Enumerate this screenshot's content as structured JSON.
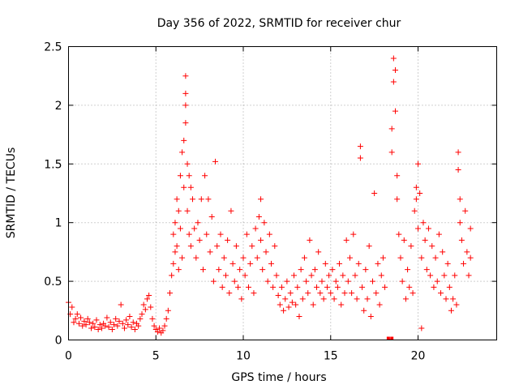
{
  "chart_data": {
    "type": "scatter",
    "title": "Day 356 of 2022, SRMTID for receiver chur",
    "xlabel": "GPS time / hours",
    "ylabel": "SRMTID / TECUs",
    "xlim": [
      0,
      24.5
    ],
    "ylim": [
      0,
      2.5
    ],
    "xticks": [
      0,
      5,
      10,
      15,
      20
    ],
    "xtick_labels": [
      "0",
      "5",
      "10",
      "15",
      "20"
    ],
    "yticks": [
      0,
      0.5,
      1,
      1.5,
      2,
      2.5
    ],
    "ytick_labels": [
      "0",
      "0.5",
      "1",
      "1.5",
      "2",
      "2.5"
    ],
    "grid": true,
    "marker": "+",
    "color": "#ff0000",
    "series": [
      {
        "name": "SRMTID",
        "points": [
          [
            0.0,
            0.32
          ],
          [
            0.1,
            0.22
          ],
          [
            0.2,
            0.28
          ],
          [
            0.3,
            0.15
          ],
          [
            0.4,
            0.18
          ],
          [
            0.5,
            0.22
          ],
          [
            0.6,
            0.14
          ],
          [
            0.7,
            0.19
          ],
          [
            0.8,
            0.12
          ],
          [
            0.9,
            0.16
          ],
          [
            1.0,
            0.13
          ],
          [
            1.1,
            0.18
          ],
          [
            1.2,
            0.15
          ],
          [
            1.3,
            0.1
          ],
          [
            1.4,
            0.14
          ],
          [
            1.5,
            0.11
          ],
          [
            1.6,
            0.17
          ],
          [
            1.7,
            0.09
          ],
          [
            1.8,
            0.13
          ],
          [
            1.9,
            0.1
          ],
          [
            2.0,
            0.14
          ],
          [
            2.1,
            0.12
          ],
          [
            2.2,
            0.19
          ],
          [
            2.3,
            0.11
          ],
          [
            2.4,
            0.15
          ],
          [
            2.5,
            0.09
          ],
          [
            2.6,
            0.13
          ],
          [
            2.7,
            0.18
          ],
          [
            2.8,
            0.12
          ],
          [
            2.9,
            0.16
          ],
          [
            3.0,
            0.3
          ],
          [
            3.1,
            0.14
          ],
          [
            3.2,
            0.1
          ],
          [
            3.3,
            0.17
          ],
          [
            3.4,
            0.13
          ],
          [
            3.5,
            0.2
          ],
          [
            3.6,
            0.11
          ],
          [
            3.7,
            0.15
          ],
          [
            3.8,
            0.09
          ],
          [
            3.9,
            0.14
          ],
          [
            4.0,
            0.12
          ],
          [
            4.1,
            0.18
          ],
          [
            4.2,
            0.22
          ],
          [
            4.3,
            0.3
          ],
          [
            4.4,
            0.26
          ],
          [
            4.5,
            0.35
          ],
          [
            4.6,
            0.38
          ],
          [
            4.7,
            0.28
          ],
          [
            4.8,
            0.18
          ],
          [
            4.9,
            0.12
          ],
          [
            5.0,
            0.09
          ],
          [
            5.1,
            0.07
          ],
          [
            5.2,
            0.1
          ],
          [
            5.3,
            0.06
          ],
          [
            5.4,
            0.08
          ],
          [
            5.5,
            0.12
          ],
          [
            5.6,
            0.18
          ],
          [
            5.7,
            0.25
          ],
          [
            5.8,
            0.4
          ],
          [
            5.9,
            0.55
          ],
          [
            6.0,
            0.9
          ],
          [
            6.0,
            0.65
          ],
          [
            6.1,
            1.0
          ],
          [
            6.1,
            0.75
          ],
          [
            6.2,
            1.2
          ],
          [
            6.2,
            0.8
          ],
          [
            6.3,
            1.1
          ],
          [
            6.3,
            0.6
          ],
          [
            6.4,
            0.95
          ],
          [
            6.4,
            1.4
          ],
          [
            6.5,
            1.6
          ],
          [
            6.5,
            0.7
          ],
          [
            6.6,
            1.7
          ],
          [
            6.6,
            1.3
          ],
          [
            6.7,
            2.25
          ],
          [
            6.7,
            2.1
          ],
          [
            6.7,
            2.0
          ],
          [
            6.7,
            1.85
          ],
          [
            6.8,
            1.5
          ],
          [
            6.8,
            1.1
          ],
          [
            6.9,
            1.4
          ],
          [
            6.9,
            0.9
          ],
          [
            7.0,
            1.3
          ],
          [
            7.0,
            0.8
          ],
          [
            7.1,
            1.2
          ],
          [
            7.2,
            0.95
          ],
          [
            7.3,
            0.7
          ],
          [
            7.4,
            1.0
          ],
          [
            7.5,
            0.85
          ],
          [
            7.6,
            1.2
          ],
          [
            7.7,
            0.6
          ],
          [
            7.8,
            1.4
          ],
          [
            7.9,
            0.9
          ],
          [
            8.0,
            1.2
          ],
          [
            8.1,
            0.75
          ],
          [
            8.2,
            1.05
          ],
          [
            8.3,
            0.5
          ],
          [
            8.4,
            1.52
          ],
          [
            8.5,
            0.8
          ],
          [
            8.6,
            0.6
          ],
          [
            8.7,
            0.9
          ],
          [
            8.8,
            0.45
          ],
          [
            8.9,
            0.7
          ],
          [
            9.0,
            0.55
          ],
          [
            9.1,
            0.85
          ],
          [
            9.2,
            0.4
          ],
          [
            9.3,
            1.1
          ],
          [
            9.4,
            0.65
          ],
          [
            9.5,
            0.5
          ],
          [
            9.6,
            0.8
          ],
          [
            9.7,
            0.45
          ],
          [
            9.8,
            0.6
          ],
          [
            9.9,
            0.35
          ],
          [
            10.0,
            0.7
          ],
          [
            10.1,
            0.55
          ],
          [
            10.2,
            0.9
          ],
          [
            10.3,
            0.45
          ],
          [
            10.4,
            0.65
          ],
          [
            10.5,
            0.8
          ],
          [
            10.6,
            0.4
          ],
          [
            10.7,
            0.95
          ],
          [
            10.8,
            0.7
          ],
          [
            10.9,
            1.05
          ],
          [
            11.0,
            1.2
          ],
          [
            11.0,
            0.85
          ],
          [
            11.1,
            0.6
          ],
          [
            11.2,
            1.0
          ],
          [
            11.3,
            0.75
          ],
          [
            11.4,
            0.5
          ],
          [
            11.5,
            0.9
          ],
          [
            11.6,
            0.65
          ],
          [
            11.7,
            0.45
          ],
          [
            11.8,
            0.8
          ],
          [
            11.9,
            0.55
          ],
          [
            12.0,
            0.38
          ],
          [
            12.1,
            0.3
          ],
          [
            12.2,
            0.45
          ],
          [
            12.3,
            0.25
          ],
          [
            12.4,
            0.35
          ],
          [
            12.5,
            0.5
          ],
          [
            12.6,
            0.28
          ],
          [
            12.7,
            0.4
          ],
          [
            12.8,
            0.32
          ],
          [
            12.9,
            0.55
          ],
          [
            13.0,
            0.3
          ],
          [
            13.1,
            0.45
          ],
          [
            13.2,
            0.2
          ],
          [
            13.3,
            0.6
          ],
          [
            13.4,
            0.35
          ],
          [
            13.5,
            0.7
          ],
          [
            13.6,
            0.5
          ],
          [
            13.7,
            0.4
          ],
          [
            13.8,
            0.85
          ],
          [
            13.9,
            0.55
          ],
          [
            14.0,
            0.3
          ],
          [
            14.1,
            0.6
          ],
          [
            14.2,
            0.45
          ],
          [
            14.3,
            0.75
          ],
          [
            14.4,
            0.4
          ],
          [
            14.5,
            0.5
          ],
          [
            14.6,
            0.35
          ],
          [
            14.7,
            0.65
          ],
          [
            14.8,
            0.45
          ],
          [
            14.9,
            0.55
          ],
          [
            15.0,
            0.4
          ],
          [
            15.1,
            0.6
          ],
          [
            15.2,
            0.35
          ],
          [
            15.3,
            0.5
          ],
          [
            15.4,
            0.45
          ],
          [
            15.5,
            0.65
          ],
          [
            15.6,
            0.3
          ],
          [
            15.7,
            0.55
          ],
          [
            15.8,
            0.4
          ],
          [
            15.9,
            0.85
          ],
          [
            16.0,
            0.5
          ],
          [
            16.1,
            0.7
          ],
          [
            16.2,
            0.4
          ],
          [
            16.3,
            0.9
          ],
          [
            16.4,
            0.55
          ],
          [
            16.5,
            0.35
          ],
          [
            16.6,
            0.65
          ],
          [
            16.7,
            1.65
          ],
          [
            16.7,
            1.55
          ],
          [
            16.8,
            0.45
          ],
          [
            16.9,
            0.25
          ],
          [
            17.0,
            0.6
          ],
          [
            17.1,
            0.35
          ],
          [
            17.2,
            0.8
          ],
          [
            17.3,
            0.2
          ],
          [
            17.4,
            0.5
          ],
          [
            17.5,
            1.25
          ],
          [
            17.6,
            0.4
          ],
          [
            17.7,
            0.65
          ],
          [
            17.8,
            0.3
          ],
          [
            17.9,
            0.55
          ],
          [
            18.0,
            0.7
          ],
          [
            18.1,
            0.45
          ],
          [
            18.5,
            1.8
          ],
          [
            18.5,
            1.6
          ],
          [
            18.6,
            2.4
          ],
          [
            18.6,
            2.2
          ],
          [
            18.7,
            2.3
          ],
          [
            18.7,
            1.95
          ],
          [
            18.8,
            1.4
          ],
          [
            18.8,
            1.2
          ],
          [
            18.9,
            0.9
          ],
          [
            19.0,
            0.7
          ],
          [
            19.1,
            0.5
          ],
          [
            19.2,
            0.85
          ],
          [
            19.3,
            0.35
          ],
          [
            19.4,
            0.6
          ],
          [
            19.5,
            0.45
          ],
          [
            19.6,
            0.8
          ],
          [
            19.7,
            0.4
          ],
          [
            19.8,
            1.1
          ],
          [
            19.9,
            1.3
          ],
          [
            19.9,
            1.2
          ],
          [
            20.0,
            1.5
          ],
          [
            20.0,
            0.95
          ],
          [
            20.1,
            1.25
          ],
          [
            20.2,
            0.7
          ],
          [
            20.2,
            0.1
          ],
          [
            20.3,
            1.0
          ],
          [
            20.4,
            0.85
          ],
          [
            20.5,
            0.6
          ],
          [
            20.6,
            0.95
          ],
          [
            20.7,
            0.55
          ],
          [
            20.8,
            0.8
          ],
          [
            20.9,
            0.45
          ],
          [
            21.0,
            0.7
          ],
          [
            21.1,
            0.5
          ],
          [
            21.2,
            0.9
          ],
          [
            21.3,
            0.4
          ],
          [
            21.4,
            0.75
          ],
          [
            21.5,
            0.55
          ],
          [
            21.6,
            0.35
          ],
          [
            21.7,
            0.65
          ],
          [
            21.8,
            0.45
          ],
          [
            21.9,
            0.25
          ],
          [
            22.0,
            0.35
          ],
          [
            22.1,
            0.55
          ],
          [
            22.2,
            0.3
          ],
          [
            22.3,
            1.6
          ],
          [
            22.3,
            1.45
          ],
          [
            22.4,
            1.2
          ],
          [
            22.4,
            1.0
          ],
          [
            22.5,
            0.85
          ],
          [
            22.6,
            0.65
          ],
          [
            22.7,
            1.1
          ],
          [
            22.8,
            0.75
          ],
          [
            22.9,
            0.55
          ],
          [
            23.0,
            0.7
          ],
          [
            23.0,
            0.95
          ]
        ]
      }
    ],
    "dropout_markers": [
      18.3,
      18.5
    ]
  }
}
